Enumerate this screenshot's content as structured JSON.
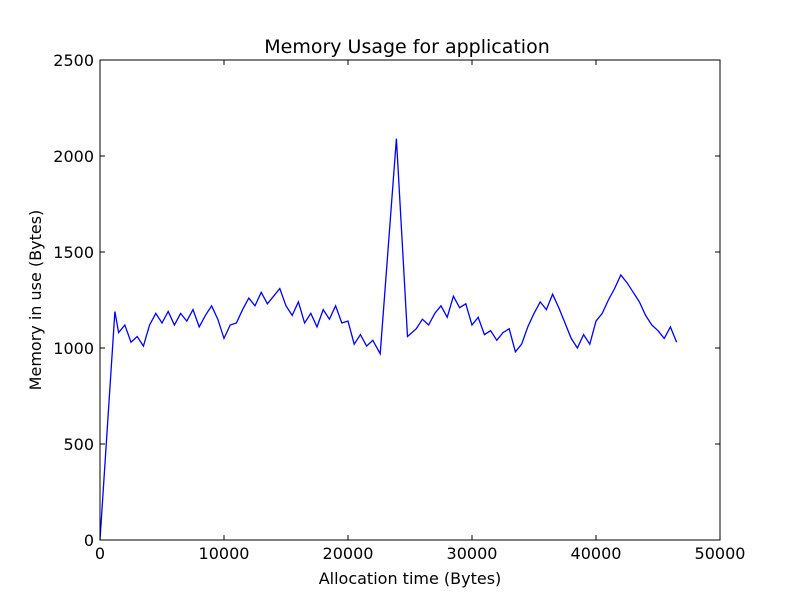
{
  "chart_data": {
    "type": "line",
    "title": "Memory Usage for application",
    "xlabel": "Allocation time (Bytes)",
    "ylabel": "Memory in use (Bytes)",
    "xlim": [
      0,
      50000
    ],
    "ylim": [
      0,
      2500
    ],
    "xticks": [
      0,
      10000,
      20000,
      30000,
      40000,
      50000
    ],
    "yticks": [
      0,
      500,
      1000,
      1500,
      2000,
      2500
    ],
    "grid": false,
    "line_color": "#0000ff",
    "series": [
      {
        "x": [
          0,
          1200,
          1500,
          2000,
          2500,
          3000,
          3500,
          4000,
          4500,
          5000,
          5500,
          6000,
          6500,
          7000,
          7500,
          8000,
          8500,
          9000,
          9500,
          10000,
          10500,
          11000,
          11500,
          12000,
          12500,
          13000,
          13500,
          14000,
          14500,
          15000,
          15500,
          16000,
          16500,
          17000,
          17500,
          18000,
          18500,
          19000,
          19500,
          20000,
          20500,
          21000,
          21500,
          22000,
          22600,
          23900,
          24800,
          25500,
          26000,
          26500,
          27000,
          27500,
          28000,
          28500,
          29000,
          29500,
          30000,
          30500,
          31000,
          31500,
          32000,
          32500,
          33000,
          33500,
          34000,
          34500,
          35000,
          35500,
          36000,
          36500,
          37000,
          37500,
          38000,
          38500,
          39000,
          39500,
          40000,
          40500,
          41000,
          41500,
          42000,
          42500,
          43000,
          43500,
          44000,
          44500,
          45000,
          45500,
          46000,
          46500
        ],
        "y": [
          0,
          1190,
          1080,
          1120,
          1030,
          1060,
          1010,
          1120,
          1180,
          1130,
          1190,
          1120,
          1180,
          1140,
          1200,
          1110,
          1170,
          1220,
          1150,
          1050,
          1120,
          1130,
          1200,
          1260,
          1220,
          1290,
          1230,
          1270,
          1310,
          1220,
          1170,
          1240,
          1130,
          1180,
          1110,
          1200,
          1150,
          1220,
          1130,
          1140,
          1020,
          1070,
          1010,
          1040,
          970,
          2090,
          1060,
          1100,
          1150,
          1120,
          1180,
          1220,
          1160,
          1270,
          1210,
          1230,
          1120,
          1160,
          1070,
          1090,
          1040,
          1080,
          1100,
          980,
          1020,
          1110,
          1180,
          1240,
          1200,
          1280,
          1210,
          1130,
          1050,
          1000,
          1070,
          1020,
          1140,
          1180,
          1250,
          1310,
          1380,
          1340,
          1290,
          1240,
          1170,
          1120,
          1090,
          1050,
          1110,
          1030
        ]
      }
    ]
  }
}
